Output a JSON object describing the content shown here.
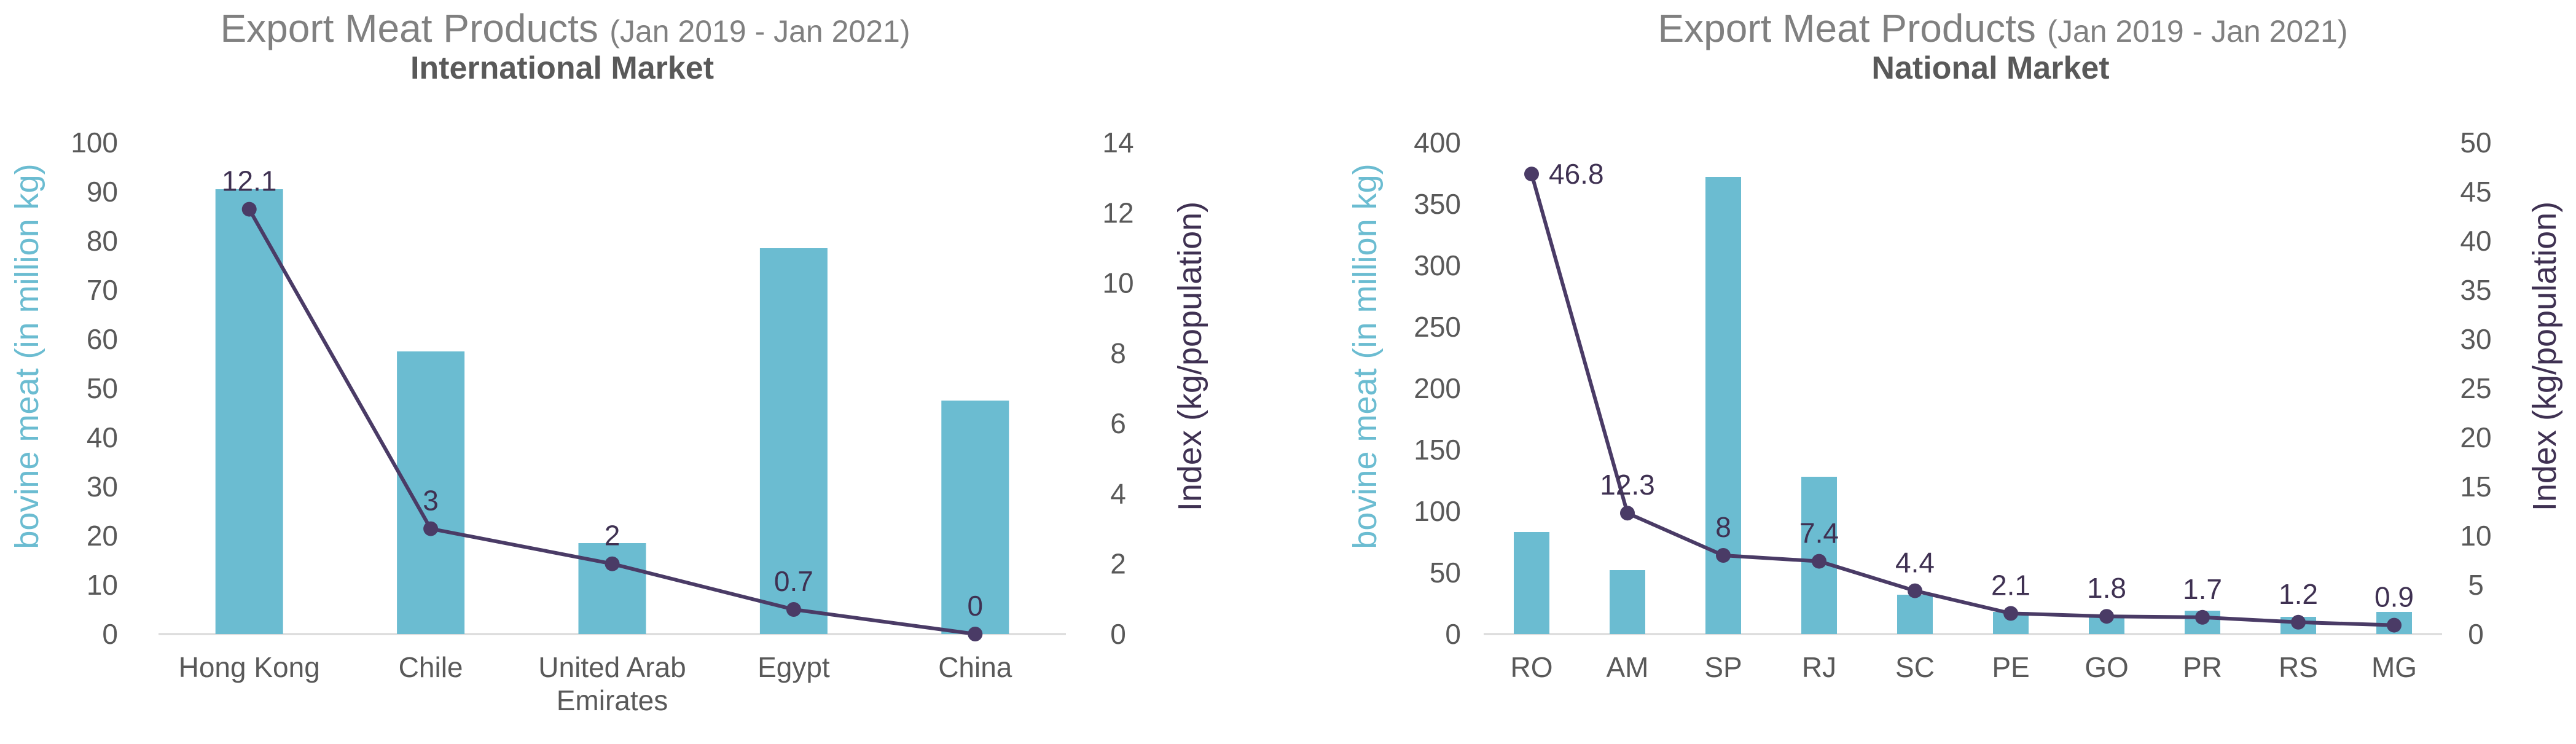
{
  "colors": {
    "bar": "#6bbcd1",
    "line": "#4a3b66",
    "axis_label_left": "#6bbcd1",
    "axis_label_right": "#3f3152",
    "text": "#595959",
    "grid": "#d9d9d9"
  },
  "chart_data": [
    {
      "type": "bar",
      "title": "Export Meat Products",
      "title_range": "(Jan 2019 - Jan 2021)",
      "subtitle": "International Market",
      "ylabel": "bovine meat (in million kg)",
      "y2label": "Index (kg/population)",
      "categories": [
        "Hong Kong",
        "Chile",
        "United Arab|Emirates",
        "Egypt",
        "China"
      ],
      "ylim": [
        0,
        100
      ],
      "yticks": [
        0,
        10,
        20,
        30,
        40,
        50,
        60,
        70,
        80,
        90,
        100
      ],
      "y2lim": [
        0,
        14
      ],
      "y2ticks": [
        0,
        2,
        4,
        6,
        8,
        10,
        12,
        14
      ],
      "series": [
        {
          "name": "bovine meat (in million kg)",
          "type": "bar",
          "axis": "left",
          "values": [
            90.5,
            57.5,
            18.5,
            78.5,
            47.5
          ]
        },
        {
          "name": "Index (kg/population)",
          "type": "line",
          "axis": "right",
          "values": [
            12.1,
            3,
            2,
            0.7,
            0
          ],
          "labels": [
            "12.1",
            "3",
            "2",
            "0.7",
            "0"
          ]
        }
      ]
    },
    {
      "type": "bar",
      "title": "Export Meat Products",
      "title_range": "(Jan 2019 - Jan 2021)",
      "subtitle": "National Market",
      "ylabel": "bovine meat (in million kg)",
      "y2label": "Index (kg/population)",
      "categories": [
        "RO",
        "AM",
        "SP",
        "RJ",
        "SC",
        "PE",
        "GO",
        "PR",
        "RS",
        "MG"
      ],
      "ylim": [
        0,
        400
      ],
      "yticks": [
        0,
        50,
        100,
        150,
        200,
        250,
        300,
        350,
        400
      ],
      "y2lim": [
        0,
        50
      ],
      "y2ticks": [
        0,
        5,
        10,
        15,
        20,
        25,
        30,
        35,
        40,
        45,
        50
      ],
      "series": [
        {
          "name": "bovine meat (in million kg)",
          "type": "bar",
          "axis": "left",
          "values": [
            83,
            52,
            372,
            128,
            32,
            18,
            15,
            19,
            14,
            18
          ]
        },
        {
          "name": "Index (kg/population)",
          "type": "line",
          "axis": "right",
          "values": [
            46.8,
            12.3,
            8,
            7.4,
            4.4,
            2.1,
            1.8,
            1.7,
            1.2,
            0.9
          ],
          "labels": [
            "46.8",
            "12.3",
            "8",
            "7.4",
            "4.4",
            "2.1",
            "1.8",
            "1.7",
            "1.2",
            "0.9"
          ]
        }
      ]
    }
  ]
}
